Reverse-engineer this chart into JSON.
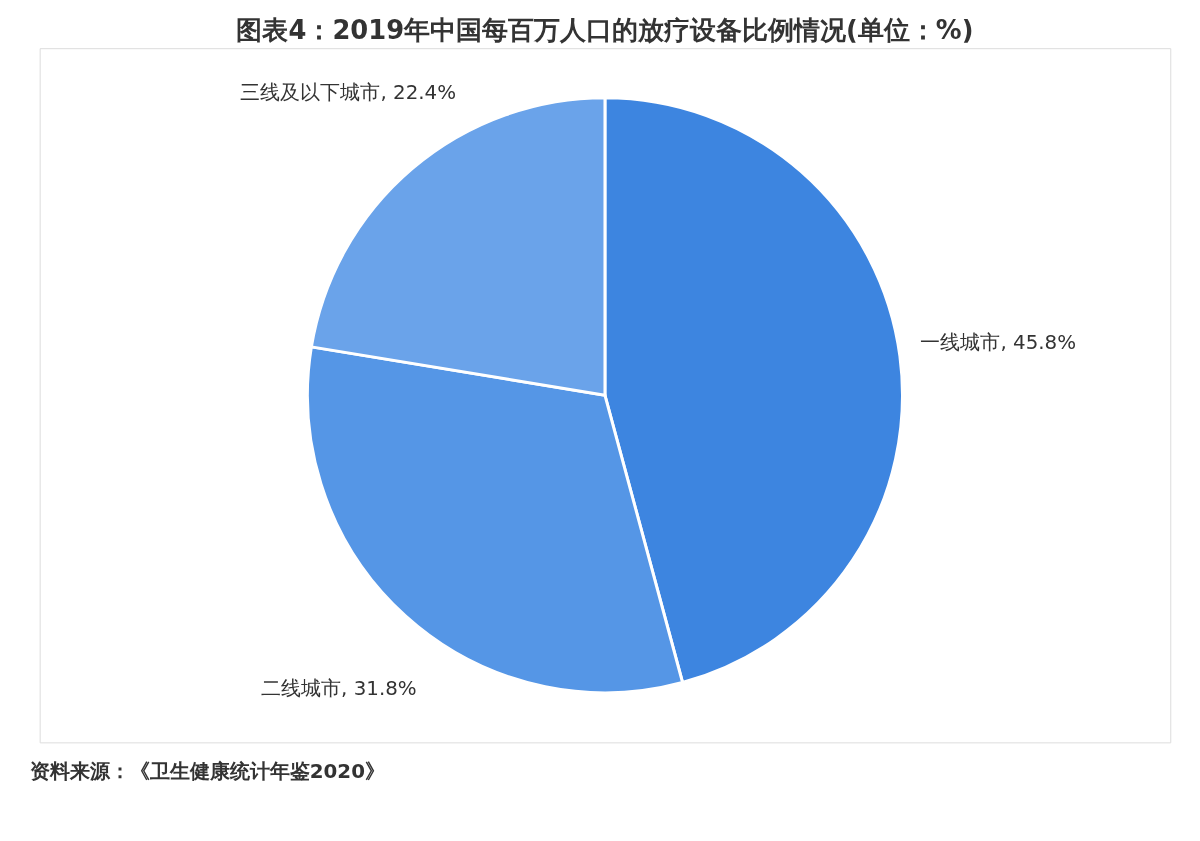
{
  "chart_data": {
    "type": "pie",
    "title": "图表4：2019年中国每百万人口的放疗设备比例情况(单位：%)",
    "categories": [
      "一线城市",
      "二线城市",
      "三线及以下城市"
    ],
    "values": [
      45.8,
      31.8,
      22.4
    ],
    "value_labels": [
      "45.8%",
      "31.8%",
      "22.4%"
    ],
    "colors": [
      "#3d85e0",
      "#5596e6",
      "#6aa3ea"
    ],
    "annotations": [
      "资料来源：《卫生健康统计年鉴2020》"
    ],
    "legend": false
  }
}
